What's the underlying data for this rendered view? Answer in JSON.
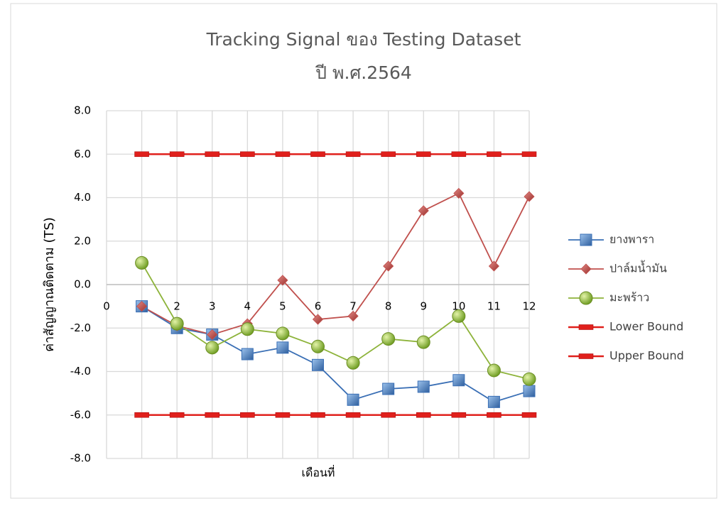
{
  "chart_data": {
    "type": "line",
    "title": [
      "Tracking Signal ของ Testing Dataset",
      "ปี พ.ศ.2564"
    ],
    "x_label": "เดือนที่",
    "y_label": "ค่าสัญญาณติดตาม (TS)",
    "x": [
      1,
      2,
      3,
      4,
      5,
      6,
      7,
      8,
      9,
      10,
      11,
      12
    ],
    "xlim": [
      0,
      12
    ],
    "xticks": [
      0,
      1,
      2,
      3,
      4,
      5,
      6,
      7,
      8,
      9,
      10,
      11,
      12
    ],
    "ylim": [
      -8,
      8
    ],
    "yticks": [
      {
        "value": -8,
        "label": "-8.0"
      },
      {
        "value": -6,
        "label": "-6.0"
      },
      {
        "value": -4,
        "label": "-4.0"
      },
      {
        "value": -2,
        "label": "-2.0"
      },
      {
        "value": 0,
        "label": "0.0"
      },
      {
        "value": 2,
        "label": "2.0"
      },
      {
        "value": 4,
        "label": "4.0"
      },
      {
        "value": 6,
        "label": "6.0"
      },
      {
        "value": 8,
        "label": "8.0"
      }
    ],
    "grid": true,
    "legend": "right",
    "series": [
      {
        "name": "ยางพารา",
        "color": "#3a6fb5",
        "marker": "square",
        "values": [
          -1.0,
          -2.0,
          -2.3,
          -3.2,
          -2.9,
          -3.7,
          -5.3,
          -4.8,
          -4.7,
          -4.4,
          -5.4,
          -4.9
        ]
      },
      {
        "name": "ปาล์มน้ำมัน",
        "color": "#c0504d",
        "marker": "diamond",
        "values": [
          -1.0,
          -1.9,
          -2.3,
          -1.8,
          0.2,
          -1.6,
          -1.45,
          0.85,
          3.4,
          4.2,
          0.85,
          4.05
        ]
      },
      {
        "name": "มะพร้าว",
        "color": "#8db33a",
        "marker": "circle",
        "values": [
          1.0,
          -1.8,
          -2.9,
          -2.05,
          -2.25,
          -2.85,
          -3.6,
          -2.5,
          -2.65,
          -1.45,
          -3.95,
          -4.35
        ]
      },
      {
        "name": "Lower Bound",
        "color": "#e0201c",
        "marker": "dash",
        "values": [
          -6,
          -6,
          -6,
          -6,
          -6,
          -6,
          -6,
          -6,
          -6,
          -6,
          -6,
          -6
        ]
      },
      {
        "name": "Upper Bound",
        "color": "#e0201c",
        "marker": "dash",
        "values": [
          6,
          6,
          6,
          6,
          6,
          6,
          6,
          6,
          6,
          6,
          6,
          6
        ]
      }
    ]
  }
}
